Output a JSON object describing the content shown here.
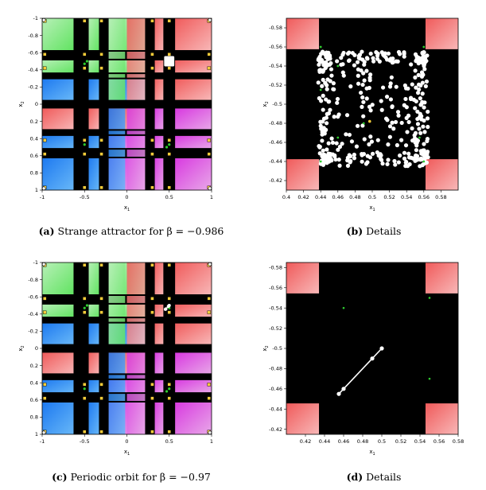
{
  "captions": {
    "a": {
      "tag": "(a)",
      "text": "Strange attractor for β = −0.986"
    },
    "b": {
      "tag": "(b)",
      "text": "Details"
    },
    "c": {
      "tag": "(c)",
      "text": "Periodic orbit for β = −0.97"
    },
    "d": {
      "tag": "(d)",
      "text": "Details"
    }
  },
  "colors": {
    "background": "#000000",
    "green": "#5fe35f",
    "green_light": "#b8f0b8",
    "red": "#f05a5a",
    "red_light": "#f8b8b8",
    "blue": "#1c78f0",
    "blue_light": "#68b8f8",
    "magenta": "#d838e0",
    "magenta_light": "#e8a8e8",
    "marker_yellow": "#f3cc3a",
    "marker_green": "#2ecc2e",
    "orbit": "#ffffff"
  },
  "chart_data": [
    {
      "id": "a",
      "type": "scatter",
      "xlabel": "x1",
      "ylabel": "x2",
      "xlim": [
        -1,
        1
      ],
      "ylim": [
        1,
        -1
      ],
      "xticks": [
        "-1",
        "-0.5",
        "0",
        "0.5",
        "1"
      ],
      "yticks": [
        "-1",
        "-0.8",
        "-0.6",
        "-0.4",
        "-0.2",
        "0",
        "0.2",
        "0.4",
        "0.6",
        "0.8",
        "1"
      ],
      "attractor": {
        "x": [
          0.44,
          0.56
        ],
        "y": [
          -0.56,
          -0.44
        ]
      }
    },
    {
      "id": "b",
      "type": "scatter",
      "xlabel": "x1",
      "ylabel": "x2",
      "xlim": [
        0.4,
        0.6
      ],
      "ylim": [
        -0.59,
        -0.41
      ],
      "xticks": [
        "0.4",
        "0.42",
        "0.44",
        "0.46",
        "0.48",
        "0.5",
        "0.52",
        "0.54",
        "0.56",
        "0.58"
      ],
      "yticks": [
        "-0.58",
        "-0.56",
        "-0.54",
        "-0.52",
        "-0.5",
        "-0.48",
        "-0.46",
        "-0.44",
        "-0.42"
      ],
      "attractor_region": {
        "x": [
          0.437,
          0.565
        ],
        "y": [
          -0.555,
          -0.435
        ]
      },
      "point_count": 420,
      "fixed_points": [
        {
          "x": 0.44,
          "y": -0.56
        },
        {
          "x": 0.56,
          "y": -0.56
        },
        {
          "x": 0.44,
          "y": -0.44
        },
        {
          "x": 0.56,
          "y": -0.44
        },
        {
          "x": 0.46,
          "y": -0.54
        },
        {
          "x": 0.49,
          "y": -0.48
        },
        {
          "x": 0.46,
          "y": -0.465
        },
        {
          "x": 0.555,
          "y": -0.465
        },
        {
          "x": 0.44,
          "y": -0.515
        }
      ],
      "highlight": {
        "x": 0.497,
        "y": -0.482
      }
    },
    {
      "id": "c",
      "type": "scatter",
      "xlabel": "x1",
      "ylabel": "x2",
      "xlim": [
        -1,
        1
      ],
      "ylim": [
        1,
        -1
      ],
      "xticks": [
        "-1",
        "-0.5",
        "0",
        "0.5",
        "1"
      ],
      "yticks": [
        "-1",
        "-0.8",
        "-0.6",
        "-0.4",
        "-0.2",
        "0",
        "0.2",
        "0.4",
        "0.6",
        "0.8",
        "1"
      ],
      "orbit": {
        "x": [
          0.455,
          0.46,
          0.49,
          0.5
        ],
        "y": [
          -0.455,
          -0.46,
          -0.49,
          -0.5
        ]
      }
    },
    {
      "id": "d",
      "type": "line",
      "xlabel": "x1",
      "ylabel": "x2",
      "xlim": [
        0.4,
        0.58
      ],
      "ylim": [
        -0.585,
        -0.415
      ],
      "xticks": [
        "0.42",
        "0.44",
        "0.46",
        "0.48",
        "0.5",
        "0.52",
        "0.54",
        "0.56",
        "0.58"
      ],
      "yticks": [
        "-0.58",
        "-0.56",
        "-0.54",
        "-0.52",
        "-0.5",
        "-0.48",
        "-0.46",
        "-0.44",
        "-0.42"
      ],
      "orbit": {
        "x": [
          0.455,
          0.46,
          0.49,
          0.5
        ],
        "y": [
          -0.455,
          -0.46,
          -0.49,
          -0.5
        ]
      },
      "fixed_points": [
        {
          "x": 0.46,
          "y": -0.54
        },
        {
          "x": 0.55,
          "y": -0.55
        },
        {
          "x": 0.55,
          "y": -0.47
        }
      ]
    }
  ]
}
